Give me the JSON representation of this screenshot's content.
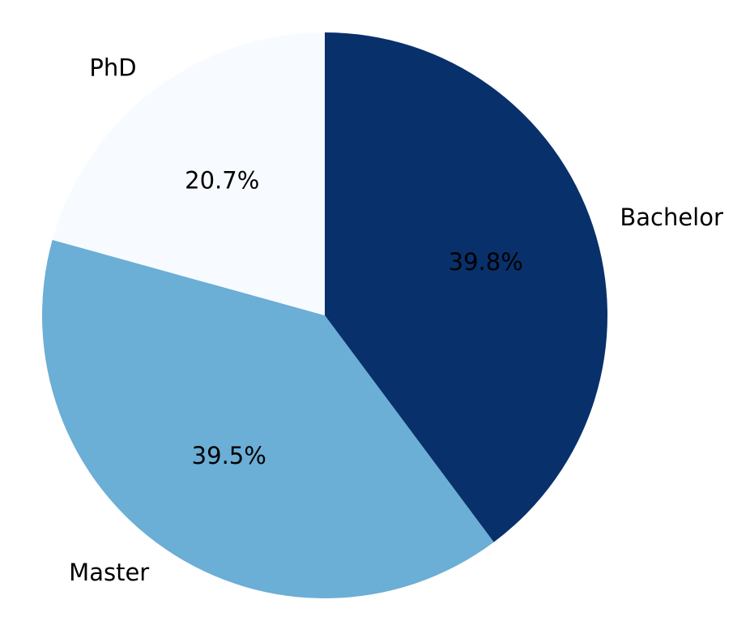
{
  "chart_data": {
    "type": "pie",
    "slices": [
      {
        "label": "Bachelor",
        "percent": 39.8,
        "percent_label": "39.8%",
        "color": "#08306b",
        "label_color": "#000000"
      },
      {
        "label": "Master",
        "percent": 39.5,
        "percent_label": "39.5%",
        "color": "#6baed6",
        "label_color": "#000000"
      },
      {
        "label": "PhD",
        "percent": 20.7,
        "percent_label": "20.7%",
        "color": "#f7fbff",
        "label_color": "#000000"
      }
    ],
    "start_angle_deg": 90,
    "direction": "clockwise",
    "legend": "none"
  }
}
